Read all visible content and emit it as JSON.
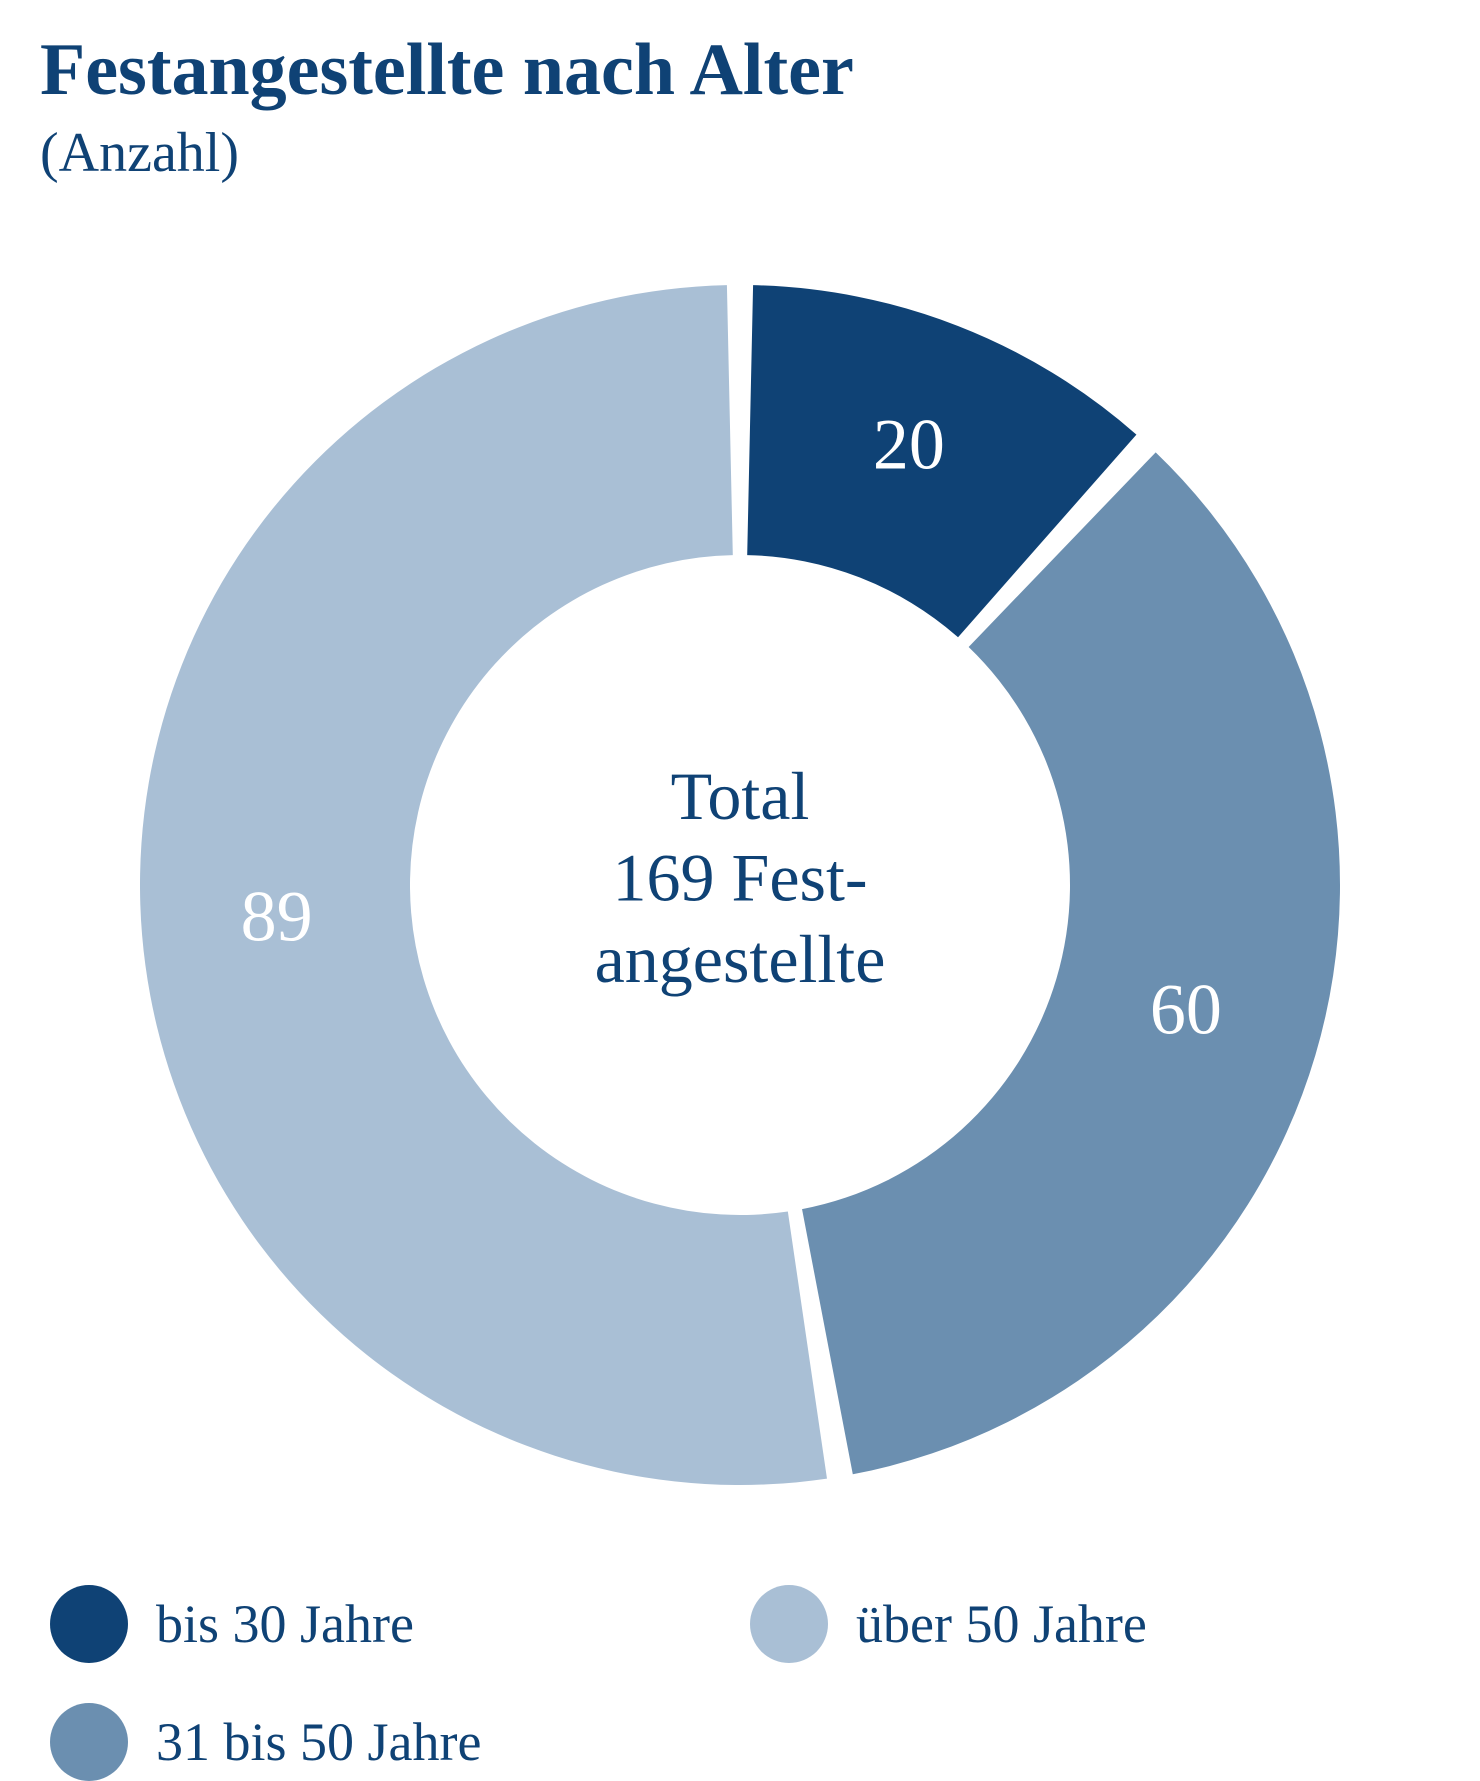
{
  "header": {
    "title": "Festangestellte nach Alter",
    "subtitle": "(Anzahl)",
    "title_fontsize": 74,
    "subtitle_fontsize": 56,
    "title_color": "#0f4275"
  },
  "chart": {
    "type": "donut",
    "total": 169,
    "size": 1280,
    "outer_radius": 600,
    "inner_radius": 330,
    "gap_deg": 2.5,
    "start_angle": -90,
    "background_color": "#ffffff",
    "slices": [
      {
        "label": "bis 30 Jahre",
        "value": 20,
        "color": "#0f4275",
        "text": "20"
      },
      {
        "label": "31 bis 50 Jahre",
        "value": 60,
        "color": "#6b8fb0",
        "text": "60"
      },
      {
        "label": "über 50 Jahre",
        "value": 89,
        "color": "#a9bfd5",
        "text": "89"
      }
    ],
    "slice_label_fontsize": 72,
    "slice_label_color": "#ffffff",
    "center_text": [
      "Total",
      "169 Fest-",
      "angestellte"
    ],
    "center_fontsize": 68,
    "center_color": "#0f4275"
  },
  "legend": {
    "swatch_size": 78,
    "fontsize": 54,
    "color": "#0f4275",
    "items": [
      {
        "label": "bis 30 Jahre",
        "color": "#0f4275"
      },
      {
        "label": "über 50 Jahre",
        "color": "#a9bfd5"
      },
      {
        "label": "31 bis 50 Jahre",
        "color": "#6b8fb0"
      }
    ]
  }
}
